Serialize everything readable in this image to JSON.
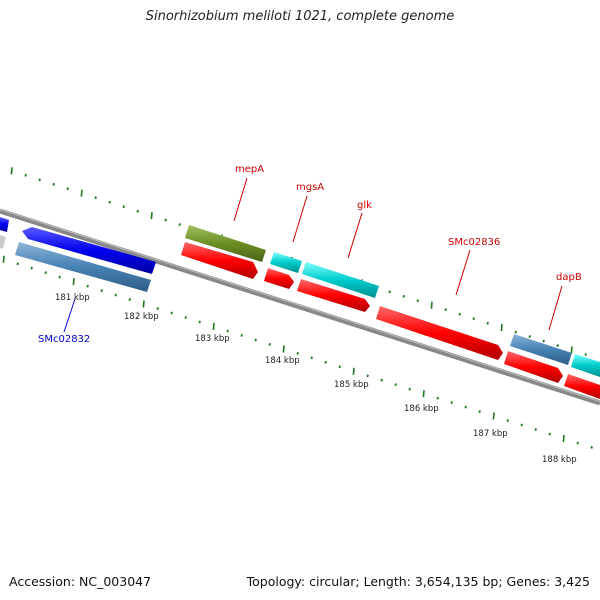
{
  "title": "Sinorhizobium meliloti 1021, complete genome",
  "footer": {
    "accession": "Accession: NC_003047",
    "topology": "Topology: circular; Length: 3,654,135 bp; Genes: 3,425"
  },
  "map": {
    "kbp_labels": [
      "181 kbp",
      "182 kbp",
      "183 kbp",
      "184 kbp",
      "185 kbp",
      "186 kbp",
      "187 kbp",
      "188 kbp"
    ],
    "gene_labels": [
      {
        "name": "mepA",
        "color": "#cc0000"
      },
      {
        "name": "mgsA",
        "color": "#cc0000"
      },
      {
        "name": "glk",
        "color": "#cc0000"
      },
      {
        "name": "SMc02836",
        "color": "#cc0000"
      },
      {
        "name": "dapB",
        "color": "#cc0000"
      },
      {
        "name": "SMc02832",
        "color": "#0000cc"
      }
    ],
    "colors": {
      "backbone": "#888888",
      "tick": "#1f7a1f",
      "red": "#ff0000",
      "blue": "#0000ee",
      "steel": "#4682b4",
      "cyan": "#00cccc",
      "olive": "#6b8e23"
    }
  }
}
